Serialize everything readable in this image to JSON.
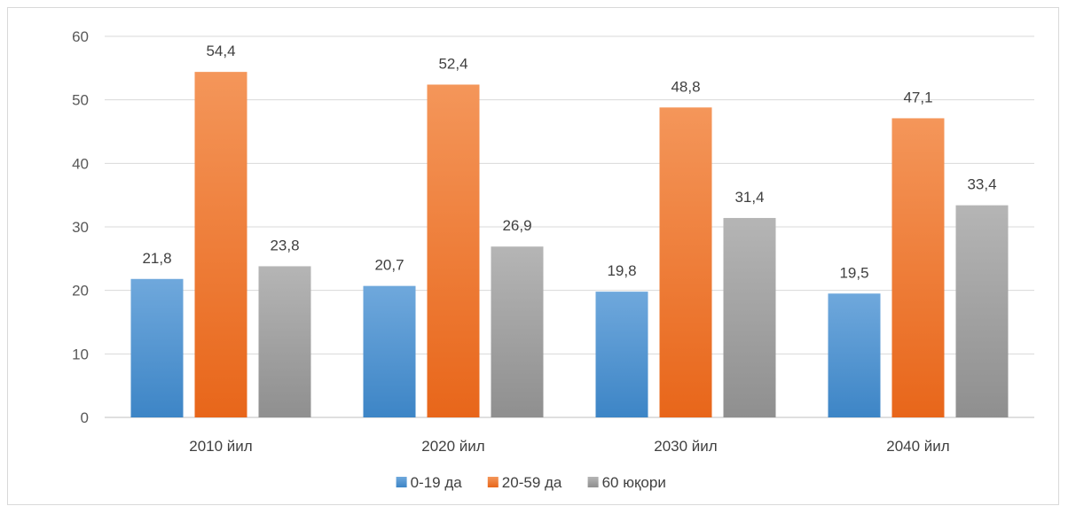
{
  "chart_data": {
    "type": "bar",
    "title": "",
    "xlabel": "",
    "ylabel": "",
    "categories": [
      "2010 йил",
      "2020 йил",
      "2030 йил",
      "2040 йил"
    ],
    "series": [
      {
        "name": "0-19 да",
        "values": [
          21.8,
          20.7,
          19.8,
          19.5
        ],
        "labels": [
          "21,8",
          "20,7",
          "19,8",
          "19,5"
        ],
        "color_top": "#6fa8dc",
        "color_bottom": "#3d85c6"
      },
      {
        "name": "20-59 да",
        "values": [
          54.4,
          52.4,
          48.8,
          47.1
        ],
        "labels": [
          "54,4",
          "52,4",
          "48,8",
          "47,1"
        ],
        "color_top": "#f4965a",
        "color_bottom": "#e8661a"
      },
      {
        "name": "60 юқори",
        "values": [
          23.8,
          26.9,
          31.4,
          33.4
        ],
        "labels": [
          "23,8",
          "26,9",
          "31,4",
          "33,4"
        ],
        "color_top": "#b5b5b5",
        "color_bottom": "#8f8f8f"
      }
    ],
    "ylim": [
      0,
      60
    ],
    "yticks": [
      "0",
      "10",
      "20",
      "30",
      "40",
      "50",
      "60"
    ],
    "grid": true,
    "legend_position": "bottom"
  }
}
